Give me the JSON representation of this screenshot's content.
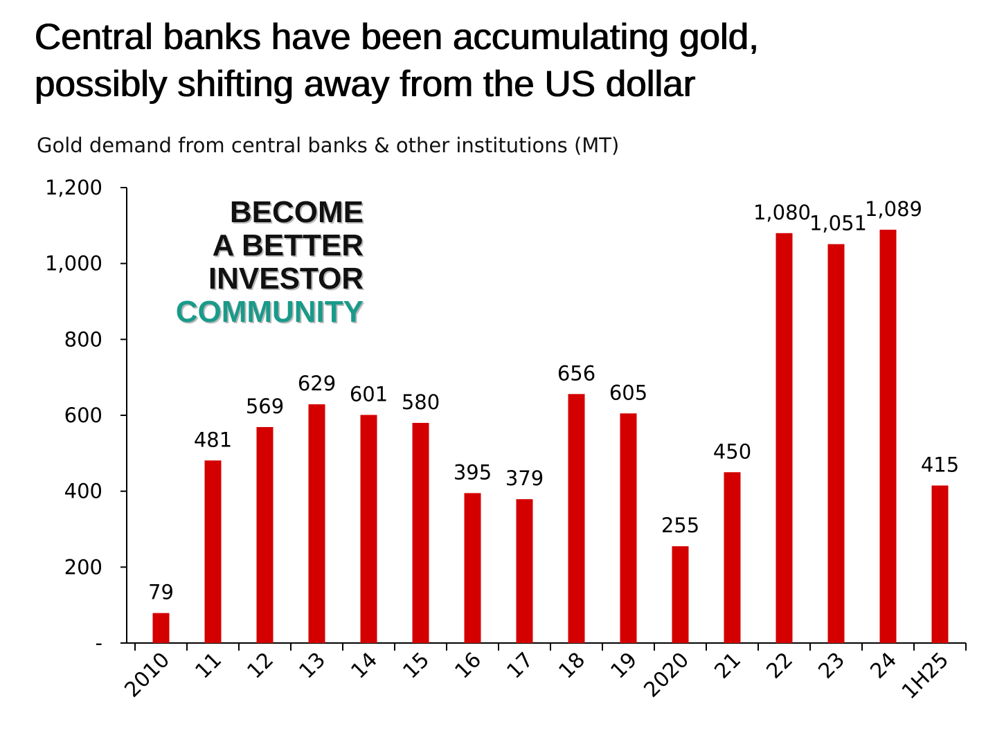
{
  "title": {
    "line1": "Central banks have been accumulating gold,",
    "line2": "possibly shifting away from the US dollar"
  },
  "badge": {
    "line1": "BECOME",
    "line2": "A BETTER",
    "line3": "INVESTOR",
    "line4": "COMMUNITY",
    "accent_color": "#1a9a8a"
  },
  "chart_data": {
    "type": "bar",
    "title": "Gold demand from central banks & other institutions (MT)",
    "xlabel": "",
    "ylabel": "",
    "categories": [
      "2010",
      "11",
      "12",
      "13",
      "14",
      "15",
      "16",
      "17",
      "18",
      "19",
      "2020",
      "21",
      "22",
      "23",
      "24",
      "1H25"
    ],
    "values": [
      79,
      481,
      569,
      629,
      601,
      580,
      395,
      379,
      656,
      605,
      255,
      450,
      1080,
      1051,
      1089,
      415
    ],
    "value_labels": [
      "79",
      "481",
      "569",
      "629",
      "601",
      "580",
      "395",
      "379",
      "656",
      "605",
      "255",
      "450",
      "1,080",
      "1,051",
      "1,089",
      "415"
    ],
    "ylim": [
      0,
      1200
    ],
    "yticks": [
      0,
      200,
      400,
      600,
      800,
      1000,
      1200
    ],
    "ytick_labels": [
      "-",
      "200",
      "400",
      "600",
      "800",
      "1,000",
      "1,200"
    ],
    "bar_color": "#d40000",
    "grid": false
  }
}
